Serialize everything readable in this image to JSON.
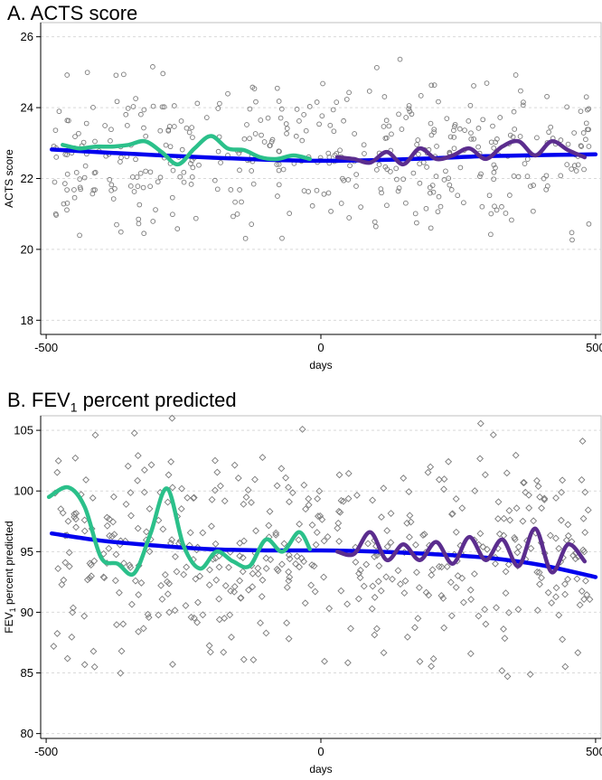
{
  "panels": [
    {
      "title": "A. ACTS score",
      "title_main": "A. ACTS score",
      "title_sub": "",
      "title_tail": ""
    },
    {
      "title": "B. FEV1 percent predicted",
      "title_main": "B. FEV",
      "title_sub": "1",
      "title_tail": " percent predicted"
    }
  ],
  "colors": {
    "fit": "#0000ee",
    "pre": "#2bc08a",
    "post": "#5b2d8e",
    "points": "#7a7a7a",
    "grid": "#d9d9d9"
  },
  "chart_data": [
    {
      "type": "scatter",
      "title": "A. ACTS score",
      "xlabel": "days",
      "ylabel": "ACTS score",
      "xlim": [
        -510,
        510
      ],
      "ylim": [
        17.6,
        26.4
      ],
      "x_ticks": [
        -500,
        0,
        500
      ],
      "y_ticks": [
        18,
        20,
        22,
        24,
        26
      ],
      "marker": "circle",
      "n_points": 430,
      "seed": 17,
      "y_center": 22.65,
      "y_spread": 1.05,
      "fit_line": {
        "name": "overall fit",
        "x": [
          -490,
          -400,
          -300,
          -200,
          -100,
          0,
          100,
          200,
          300,
          400,
          500
        ],
        "y": [
          22.82,
          22.74,
          22.66,
          22.59,
          22.53,
          22.5,
          22.52,
          22.57,
          22.63,
          22.66,
          22.68
        ]
      },
      "series": [
        {
          "name": "pre-period smooth",
          "x": [
            -470,
            -440,
            -410,
            -380,
            -350,
            -320,
            -290,
            -260,
            -230,
            -200,
            -170,
            -140,
            -110,
            -80,
            -50,
            -20
          ],
          "y": [
            22.95,
            22.85,
            22.9,
            22.9,
            22.95,
            23.05,
            22.75,
            22.4,
            22.85,
            23.2,
            22.85,
            22.8,
            22.6,
            22.55,
            22.65,
            22.55
          ]
        },
        {
          "name": "post-period smooth",
          "x": [
            30,
            60,
            90,
            120,
            150,
            180,
            210,
            240,
            270,
            300,
            330,
            360,
            390,
            420,
            450,
            480
          ],
          "y": [
            22.6,
            22.55,
            22.45,
            22.75,
            22.4,
            22.85,
            22.55,
            22.65,
            22.85,
            22.55,
            22.9,
            23.05,
            22.65,
            23.05,
            22.8,
            22.6
          ]
        }
      ]
    },
    {
      "type": "scatter",
      "title": "B. FEV1 percent predicted",
      "xlabel": "days",
      "ylabel": "FEV1 percent predicted",
      "xlim": [
        -510,
        510
      ],
      "ylim": [
        79.6,
        106.2
      ],
      "x_ticks": [
        -500,
        0,
        500
      ],
      "y_ticks": [
        80,
        85,
        90,
        95,
        100,
        105
      ],
      "marker": "diamond",
      "n_points": 470,
      "seed": 41,
      "y_center": 94.6,
      "y_spread": 4.2,
      "fit_line": {
        "name": "overall fit",
        "x": [
          -490,
          -400,
          -300,
          -200,
          -100,
          0,
          100,
          200,
          300,
          400,
          500
        ],
        "y": [
          96.5,
          95.9,
          95.5,
          95.2,
          95.1,
          95.1,
          95.0,
          94.8,
          94.5,
          93.9,
          92.9
        ]
      },
      "series": [
        {
          "name": "pre-period smooth",
          "x": [
            -495,
            -460,
            -430,
            -400,
            -370,
            -340,
            -310,
            -280,
            -250,
            -220,
            -190,
            -160,
            -130,
            -100,
            -70,
            -40,
            -20
          ],
          "y": [
            99.5,
            100.3,
            98.7,
            94.5,
            94.0,
            93.2,
            96.5,
            100.2,
            95.5,
            93.6,
            95.0,
            94.2,
            93.8,
            96.0,
            95.0,
            96.6,
            95.2
          ]
        },
        {
          "name": "post-period smooth",
          "x": [
            30,
            60,
            90,
            120,
            150,
            180,
            210,
            240,
            270,
            300,
            330,
            360,
            390,
            420,
            450,
            480
          ],
          "y": [
            95.0,
            94.8,
            96.6,
            94.3,
            95.6,
            94.3,
            95.8,
            94.0,
            96.2,
            94.3,
            96.0,
            93.8,
            96.9,
            93.3,
            95.6,
            94.2
          ]
        }
      ]
    }
  ]
}
